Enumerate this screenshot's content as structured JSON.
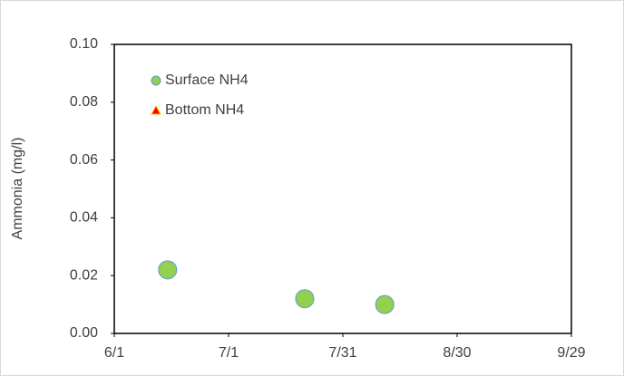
{
  "chart_data": {
    "type": "scatter",
    "y_label": "Ammonia (mg/l)",
    "series": [
      {
        "name": "Surface NH4",
        "marker": "circle",
        "color": "#92d050",
        "edge_color": "#5b9bd5",
        "x": [
          166,
          202,
          223
        ],
        "values": [
          0.022,
          0.012,
          0.01
        ]
      },
      {
        "name": "Bottom NH4",
        "marker": "triangle",
        "color": "#ff0000",
        "edge_color": "#ffc000",
        "x": [],
        "values": []
      }
    ],
    "xlim": [
      152,
      272
    ],
    "xticks": [
      {
        "value": 152,
        "label": "6/1"
      },
      {
        "value": 182,
        "label": "7/1"
      },
      {
        "value": 212,
        "label": "7/31"
      },
      {
        "value": 242,
        "label": "8/30"
      },
      {
        "value": 272,
        "label": "9/29"
      }
    ],
    "ylim": [
      0,
      0.1
    ],
    "yticks": [
      {
        "value": 0,
        "label": "0.00"
      },
      {
        "value": 0.02,
        "label": "0.02"
      },
      {
        "value": 0.04,
        "label": "0.04"
      },
      {
        "value": 0.06,
        "label": "0.06"
      },
      {
        "value": 0.08,
        "label": "0.08"
      },
      {
        "value": 0.1,
        "label": "0.10"
      }
    ],
    "legend": "upper left"
  }
}
